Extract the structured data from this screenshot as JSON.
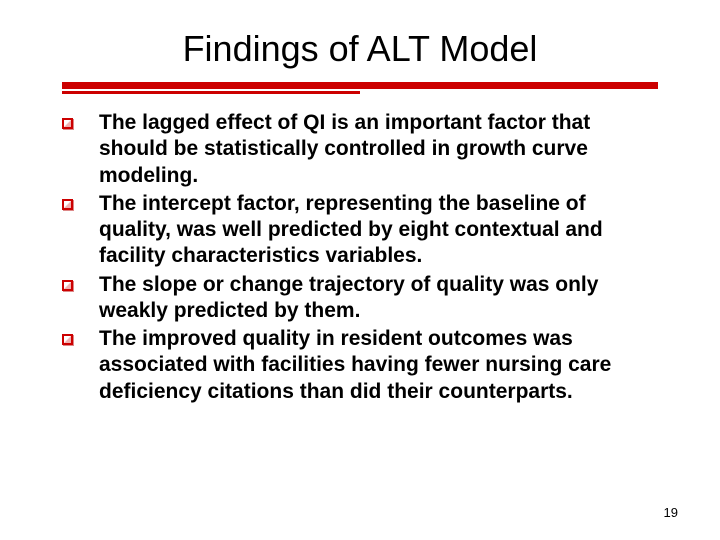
{
  "slide": {
    "title": "Findings of ALT Model",
    "accent_color": "#cc0000",
    "background_color": "#ffffff",
    "title_fontsize": 36,
    "body_fontsize": 21,
    "body_fontweight": "bold",
    "bullets": [
      "The lagged effect of QI is an important factor that should be statistically controlled in growth curve modeling.",
      "The intercept factor, representing the baseline of quality, was well predicted by eight contextual and facility characteristics variables.",
      "The slope or change trajectory of quality was only weakly predicted by them.",
      "The improved quality in resident outcomes was associated with facilities having fewer nursing care deficiency citations than did their counterparts."
    ],
    "page_number": "19"
  }
}
